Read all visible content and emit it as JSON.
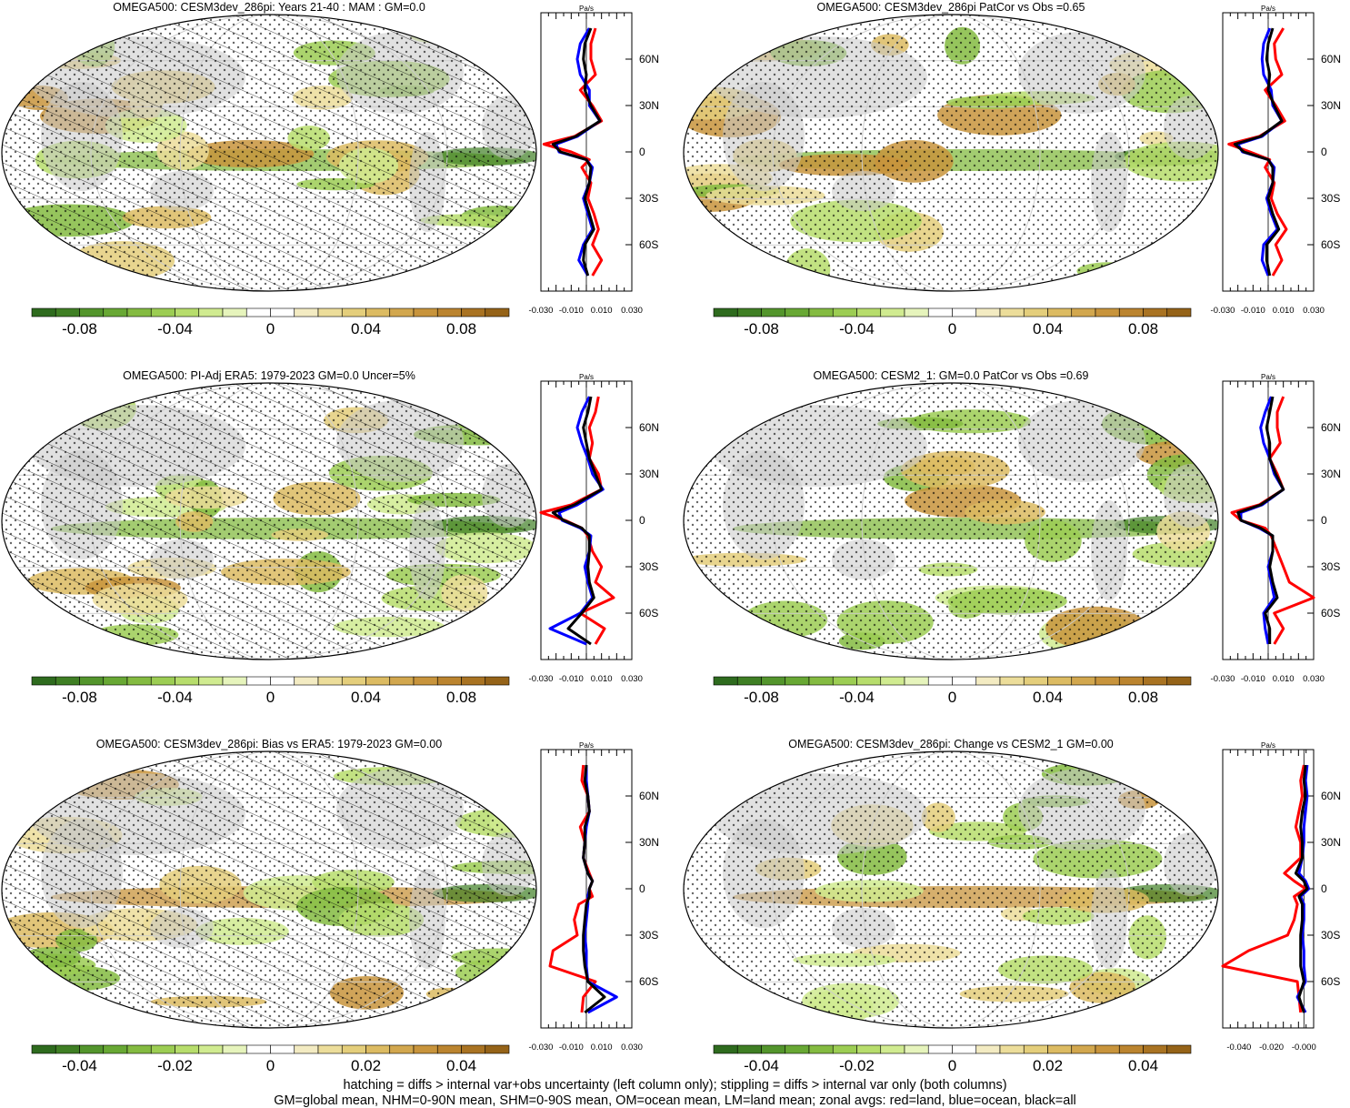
{
  "figure": {
    "footnotes": [
      "hatching = diffs > internal var+obs uncertainty (left column only); stippling = diffs > internal var only (both columns)",
      "GM=global mean, NHM=0-90N mean, SHM=0-90S mean, OM=ocean mean, LM=land mean; zonal avgs: red=land, blue=ocean, black=all"
    ],
    "colors": {
      "land_zonal": "#ff0000",
      "ocean_zonal": "#0000ff",
      "all_zonal": "#000000",
      "land_mask": "#c8c8c8",
      "colormap": [
        "#2e6b1e",
        "#3f7f24",
        "#53952c",
        "#68a834",
        "#84bb41",
        "#9ccd53",
        "#b7dd6c",
        "#d0eb90",
        "#e6f4bc",
        "#ffffff",
        "#ffffff",
        "#f3ebc2",
        "#ecdd9a",
        "#e4ce7b",
        "#dcbb62",
        "#d2a74e",
        "#c8943c",
        "#bb842f",
        "#a97322",
        "#956318"
      ]
    }
  },
  "chart_data": [
    {
      "type": "heatmap",
      "title": "OMEGA500: CESM3dev_286pi: Years 21-40 : MAM : GM=0.0",
      "colorbar": {
        "ticks": [
          "-0.08",
          "-0.04",
          "0",
          "0.04",
          "0.08"
        ],
        "range": [
          -0.1,
          0.1
        ]
      },
      "zonal_mean": {
        "units": "Pa/s",
        "lat_ticks": [
          "60N",
          "30N",
          "0",
          "30S",
          "60S"
        ],
        "x_ticks": [
          "-0.030",
          "-0.010",
          "0.010",
          "0.030"
        ],
        "xlim": [
          -0.03,
          0.03
        ],
        "lat": [
          80,
          70,
          60,
          50,
          40,
          30,
          20,
          10,
          5,
          0,
          -5,
          -10,
          -20,
          -30,
          -40,
          -50,
          -60,
          -70,
          -80
        ],
        "land": [
          0.006,
          0.003,
          0.003,
          0.006,
          -0.004,
          0.004,
          0.01,
          -0.008,
          -0.028,
          -0.01,
          0.002,
          -0.003,
          0.003,
          0.001,
          0.005,
          0.008,
          0.004,
          0.01,
          0.004
        ],
        "ocean": [
          0.002,
          -0.004,
          -0.006,
          -0.004,
          0.002,
          0.002,
          0.009,
          -0.006,
          -0.02,
          -0.018,
          0.0,
          0.004,
          0.002,
          -0.002,
          0.001,
          0.004,
          -0.002,
          -0.005,
          0.001
        ],
        "all": [
          0.003,
          -0.001,
          -0.002,
          0.0,
          -0.001,
          0.003,
          0.009,
          -0.007,
          -0.022,
          -0.017,
          0.0,
          0.003,
          0.002,
          -0.001,
          0.002,
          0.005,
          -0.001,
          -0.002,
          0.001
        ]
      }
    },
    {
      "type": "heatmap",
      "title": "OMEGA500: CESM3dev_286pi PatCor vs Obs =0.65",
      "colorbar": {
        "ticks": [
          "-0.08",
          "-0.04",
          "0",
          "0.04",
          "0.08"
        ],
        "range": [
          -0.1,
          0.1
        ]
      },
      "zonal_mean": {
        "units": "Pa/s",
        "lat_ticks": [
          "60N",
          "30N",
          "0",
          "30S",
          "60S"
        ],
        "x_ticks": [
          "-0.030",
          "-0.010",
          "0.010",
          "0.030"
        ],
        "xlim": [
          -0.03,
          0.03
        ],
        "lat": [
          80,
          70,
          60,
          50,
          40,
          30,
          20,
          10,
          5,
          0,
          -5,
          -10,
          -20,
          -30,
          -40,
          -50,
          -60,
          -70,
          -80
        ],
        "land": [
          0.01,
          0.004,
          0.005,
          0.009,
          -0.002,
          0.005,
          0.011,
          -0.006,
          -0.026,
          -0.012,
          0.001,
          -0.002,
          0.004,
          0.002,
          0.006,
          0.012,
          0.005,
          0.009,
          0.003
        ],
        "ocean": [
          0.001,
          -0.003,
          -0.004,
          -0.003,
          0.002,
          0.003,
          0.009,
          -0.004,
          -0.02,
          -0.017,
          0.0,
          0.004,
          0.003,
          -0.001,
          0.002,
          0.006,
          -0.003,
          -0.004,
          0.0
        ],
        "all": [
          0.003,
          0.0,
          -0.001,
          0.001,
          0.0,
          0.004,
          0.009,
          -0.005,
          -0.022,
          -0.016,
          0.0,
          0.003,
          0.003,
          0.0,
          0.003,
          0.007,
          -0.001,
          -0.001,
          0.001
        ]
      }
    },
    {
      "type": "heatmap",
      "title": "OMEGA500: PI-Adj ERA5: 1979-2023 GM=0.0 Uncer=5%",
      "colorbar": {
        "ticks": [
          "-0.08",
          "-0.04",
          "0",
          "0.04",
          "0.08"
        ],
        "range": [
          -0.1,
          0.1
        ]
      },
      "zonal_mean": {
        "units": "Pa/s",
        "lat_ticks": [
          "60N",
          "30N",
          "0",
          "30S",
          "60S"
        ],
        "x_ticks": [
          "-0.030",
          "-0.010",
          "0.010",
          "0.030"
        ],
        "xlim": [
          -0.03,
          0.03
        ],
        "lat": [
          80,
          70,
          60,
          50,
          40,
          30,
          20,
          10,
          5,
          0,
          -5,
          -10,
          -20,
          -30,
          -40,
          -50,
          -60,
          -70,
          -80
        ],
        "land": [
          0.008,
          0.006,
          0.002,
          0.004,
          0.002,
          0.008,
          0.01,
          -0.01,
          -0.03,
          -0.014,
          -0.003,
          0.001,
          0.004,
          0.01,
          0.006,
          0.018,
          -0.004,
          0.012,
          0.006
        ],
        "ocean": [
          0.002,
          -0.003,
          -0.006,
          -0.003,
          0.001,
          0.004,
          0.011,
          -0.006,
          -0.018,
          -0.016,
          -0.004,
          0.003,
          0.002,
          -0.001,
          0.001,
          0.004,
          -0.004,
          -0.024,
          0.0
        ],
        "all": [
          0.003,
          0.001,
          -0.002,
          0.0,
          0.002,
          0.006,
          0.01,
          -0.008,
          -0.022,
          -0.015,
          -0.003,
          0.002,
          0.002,
          0.001,
          0.002,
          0.005,
          -0.003,
          -0.012,
          0.003
        ]
      }
    },
    {
      "type": "heatmap",
      "title": "OMEGA500: CESM2_1: GM=0.0 PatCor vs Obs =0.69",
      "colorbar": {
        "ticks": [
          "-0.08",
          "-0.04",
          "0",
          "0.04",
          "0.08"
        ],
        "range": [
          -0.1,
          0.1
        ]
      },
      "zonal_mean": {
        "units": "Pa/s",
        "lat_ticks": [
          "60N",
          "30N",
          "0",
          "30S",
          "60S"
        ],
        "x_ticks": [
          "-0.030",
          "-0.010",
          "0.010",
          "0.030"
        ],
        "xlim": [
          -0.03,
          0.03
        ],
        "lat": [
          80,
          70,
          60,
          50,
          40,
          30,
          20,
          10,
          5,
          0,
          -5,
          -10,
          -20,
          -30,
          -40,
          -50,
          -60,
          -70,
          -80
        ],
        "land": [
          0.01,
          0.006,
          0.006,
          0.008,
          0.001,
          0.006,
          0.01,
          -0.006,
          -0.024,
          -0.018,
          -0.002,
          0.002,
          0.006,
          0.01,
          0.014,
          0.03,
          0.004,
          0.01,
          0.004
        ],
        "ocean": [
          0.002,
          -0.002,
          -0.005,
          -0.003,
          0.001,
          0.004,
          0.01,
          -0.004,
          -0.018,
          -0.018,
          -0.006,
          0.003,
          0.003,
          0.0,
          0.002,
          0.004,
          -0.003,
          -0.002,
          0.0
        ],
        "all": [
          0.003,
          0.001,
          -0.001,
          0.001,
          0.001,
          0.005,
          0.01,
          -0.005,
          -0.02,
          -0.018,
          -0.005,
          0.003,
          0.003,
          0.001,
          0.003,
          0.006,
          -0.002,
          0.001,
          0.001
        ]
      }
    },
    {
      "type": "heatmap",
      "title": "OMEGA500: CESM3dev_286pi: Bias vs ERA5: 1979-2023 GM=0.00",
      "colorbar": {
        "ticks": [
          "-0.04",
          "-0.02",
          "0",
          "0.02",
          "0.04"
        ],
        "range": [
          -0.05,
          0.05
        ]
      },
      "zonal_mean": {
        "units": "Pa/s",
        "lat_ticks": [
          "60N",
          "30N",
          "0",
          "30S",
          "60S"
        ],
        "x_ticks": [
          "-0.030",
          "-0.010",
          "0.010",
          "0.030"
        ],
        "xlim": [
          -0.03,
          0.03
        ],
        "lat": [
          80,
          70,
          60,
          50,
          40,
          30,
          20,
          10,
          5,
          0,
          -5,
          -10,
          -20,
          -30,
          -40,
          -50,
          -60,
          -70,
          -80
        ],
        "land": [
          -0.002,
          -0.003,
          0.001,
          0.002,
          -0.004,
          -0.001,
          -0.002,
          0.002,
          0.004,
          0.002,
          0.004,
          -0.005,
          -0.008,
          -0.006,
          -0.022,
          -0.024,
          0.006,
          -0.002,
          -0.003
        ],
        "ocean": [
          0.0,
          0.0,
          0.001,
          0.002,
          0.0,
          -0.001,
          -0.002,
          0.001,
          0.004,
          0.002,
          0.001,
          0.001,
          0.0,
          -0.001,
          0.0,
          0.0,
          0.001,
          0.02,
          0.001
        ],
        "all": [
          0.0,
          -0.001,
          0.001,
          0.002,
          -0.001,
          -0.001,
          -0.002,
          0.001,
          0.004,
          0.002,
          0.002,
          0.0,
          -0.001,
          -0.002,
          -0.002,
          -0.001,
          0.001,
          0.012,
          -0.001
        ]
      }
    },
    {
      "type": "heatmap",
      "title": "OMEGA500: CESM3dev_286pi: Change vs CESM2_1 GM=0.00",
      "colorbar": {
        "ticks": [
          "-0.04",
          "-0.02",
          "0",
          "0.02",
          "0.04"
        ],
        "range": [
          -0.05,
          0.05
        ]
      },
      "zonal_mean": {
        "units": "Pa/s",
        "lat_ticks": [
          "60N",
          "30N",
          "0",
          "30S",
          "60S"
        ],
        "x_ticks": [
          "-0.040",
          "-0.020",
          "-0.000"
        ],
        "xlim": [
          -0.05,
          0.006
        ],
        "lat": [
          80,
          70,
          60,
          50,
          40,
          30,
          20,
          10,
          5,
          0,
          -5,
          -10,
          -20,
          -30,
          -40,
          -50,
          -60,
          -70,
          -80
        ],
        "land": [
          0.0,
          -0.002,
          -0.001,
          -0.003,
          -0.005,
          -0.002,
          -0.002,
          -0.012,
          -0.006,
          0.001,
          -0.006,
          -0.004,
          -0.006,
          -0.01,
          -0.034,
          -0.05,
          -0.004,
          -0.003,
          -0.002
        ],
        "ocean": [
          0.002,
          0.001,
          0.002,
          0.001,
          0.0,
          0.0,
          -0.001,
          -0.003,
          0.001,
          0.003,
          -0.002,
          0.0,
          0.0,
          -0.001,
          0.0,
          0.0,
          0.001,
          -0.004,
          0.001
        ],
        "all": [
          0.001,
          0.0,
          0.001,
          -0.001,
          -0.002,
          -0.001,
          -0.001,
          -0.005,
          0.0,
          0.002,
          -0.003,
          -0.001,
          -0.001,
          -0.002,
          -0.002,
          -0.002,
          0.0,
          -0.003,
          0.0
        ]
      }
    }
  ]
}
